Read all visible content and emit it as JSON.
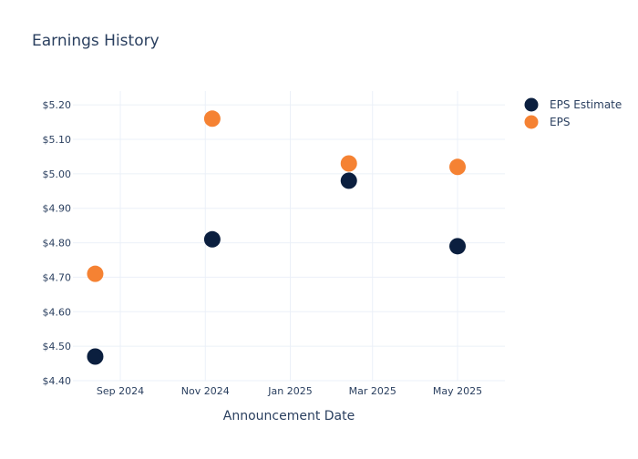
{
  "chart_data": {
    "type": "scatter",
    "title": "Earnings History",
    "xlabel": "Announcement Date",
    "ylabel": "",
    "x_ticks": [
      "Sep 2024",
      "Nov 2024",
      "Jan 2025",
      "Mar 2025",
      "May 2025"
    ],
    "y_ticks": [
      "$4.40",
      "$4.50",
      "$4.60",
      "$4.70",
      "$4.80",
      "$4.90",
      "$5.00",
      "$5.10",
      "$5.20"
    ],
    "ylim": [
      4.4,
      5.24
    ],
    "xlim": [
      "2024-07-29",
      "2025-06-04"
    ],
    "grid": true,
    "legend_position": "top-right",
    "x": [
      "2024-08-14",
      "2024-11-06",
      "2025-02-12",
      "2025-05-01"
    ],
    "series": [
      {
        "name": "EPS Estimate",
        "color": "#0b1f3f",
        "values": [
          4.47,
          4.81,
          4.98,
          4.79
        ]
      },
      {
        "name": "EPS",
        "color": "#f58233",
        "values": [
          4.71,
          5.16,
          5.03,
          5.02
        ]
      }
    ]
  }
}
